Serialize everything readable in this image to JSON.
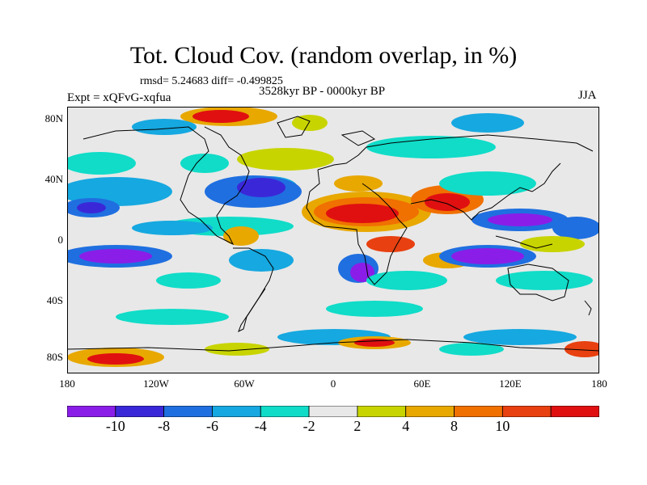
{
  "title": "Tot. Cloud Cov. (random overlap, in %)",
  "stats": "rmsd= 5.24683 diff= -0.499825",
  "period": "3528kyr BP - 0000kyr BP",
  "experiment": "Expt = xQFvG-xqfua",
  "season": "JJA",
  "lat_ticks": [
    "80N",
    "40N",
    "0",
    "40S",
    "80S"
  ],
  "lon_ticks": [
    "180",
    "120W",
    "60W",
    "0",
    "60E",
    "120E",
    "180"
  ],
  "colorbar": {
    "colors": [
      "#8a1ee8",
      "#3a28d8",
      "#1f6fe0",
      "#16a8e0",
      "#10dcc8",
      "#e8e8e8",
      "#c8d400",
      "#e8a800",
      "#f07000",
      "#e84010",
      "#e01010"
    ],
    "labels": [
      "-10",
      "-8",
      "-6",
      "-4",
      "-2",
      "2",
      "4",
      "8",
      "10"
    ]
  }
}
